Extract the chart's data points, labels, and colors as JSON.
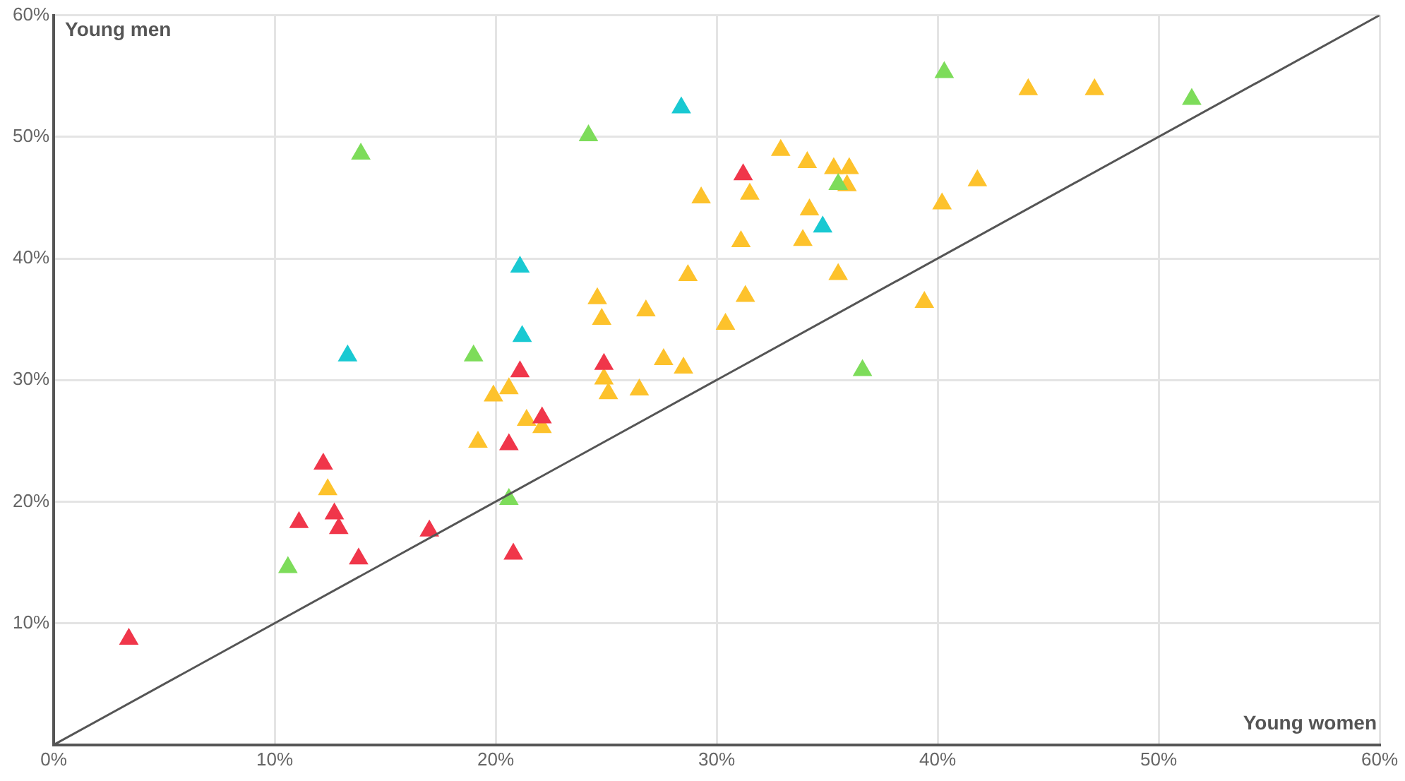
{
  "chart_data": {
    "type": "scatter",
    "marker": "triangle",
    "grid": true,
    "legend": false,
    "xlim": [
      0,
      60
    ],
    "ylim": [
      0,
      60
    ],
    "xticks": [
      {
        "value": 0,
        "label": "0%"
      },
      {
        "value": 10,
        "label": "10%"
      },
      {
        "value": 20,
        "label": "20%"
      },
      {
        "value": 30,
        "label": "30%"
      },
      {
        "value": 40,
        "label": "40%"
      },
      {
        "value": 50,
        "label": "50%"
      },
      {
        "value": 60,
        "label": "60%"
      }
    ],
    "yticks": [
      {
        "value": 0,
        "label": null
      },
      {
        "value": 10,
        "label": "10%"
      },
      {
        "value": 20,
        "label": "20%"
      },
      {
        "value": 30,
        "label": "30%"
      },
      {
        "value": 40,
        "label": "40%"
      },
      {
        "value": 50,
        "label": "50%"
      },
      {
        "value": 60,
        "label": "60%"
      }
    ],
    "annotations": [
      "Young men",
      "Young women"
    ],
    "series": [
      {
        "type": "line",
        "marker": "none",
        "color": "#555555",
        "x": [
          0,
          60
        ],
        "values": [
          0,
          60
        ]
      },
      {
        "color": "#f0364a",
        "x": [
          3.4,
          12.2,
          11.1,
          12.7,
          12.9,
          13.8,
          17.0,
          20.6,
          20.8,
          21.1,
          22.1,
          24.9,
          31.2
        ],
        "values": [
          8.7,
          23.1,
          18.3,
          19.0,
          17.8,
          15.3,
          17.6,
          24.7,
          15.7,
          30.7,
          26.9,
          31.3,
          46.9
        ]
      },
      {
        "color": "#19c9d2",
        "x": [
          13.3,
          21.1,
          21.2,
          28.4,
          34.8
        ],
        "values": [
          32.0,
          39.3,
          33.6,
          52.4,
          42.6
        ]
      },
      {
        "color": "#7ddc5a",
        "x": [
          10.6,
          13.9,
          19.0,
          20.6,
          24.2,
          36.6,
          35.5,
          40.3,
          51.5
        ],
        "values": [
          14.6,
          48.6,
          32.0,
          20.2,
          50.1,
          30.8,
          46.1,
          55.3,
          53.1
        ]
      },
      {
        "color": "#fdc22c",
        "x": [
          12.4,
          19.2,
          19.9,
          20.6,
          21.4,
          22.1,
          24.6,
          24.8,
          24.9,
          25.1,
          26.8,
          26.5,
          27.6,
          28.5,
          28.7,
          29.3,
          30.4,
          31.1,
          31.3,
          31.5,
          32.9,
          34.1,
          33.9,
          34.2,
          35.3,
          36.0,
          35.9,
          35.5,
          39.4,
          40.2,
          41.8,
          44.1,
          47.1
        ],
        "values": [
          21.0,
          24.9,
          28.7,
          29.3,
          26.7,
          26.1,
          36.7,
          35.0,
          30.1,
          28.9,
          35.7,
          29.2,
          31.7,
          31.0,
          38.6,
          45.0,
          34.6,
          41.4,
          36.9,
          45.3,
          48.9,
          47.9,
          41.5,
          44.0,
          47.4,
          47.4,
          46.0,
          38.7,
          36.4,
          44.5,
          46.4,
          53.9,
          53.9
        ]
      }
    ]
  }
}
